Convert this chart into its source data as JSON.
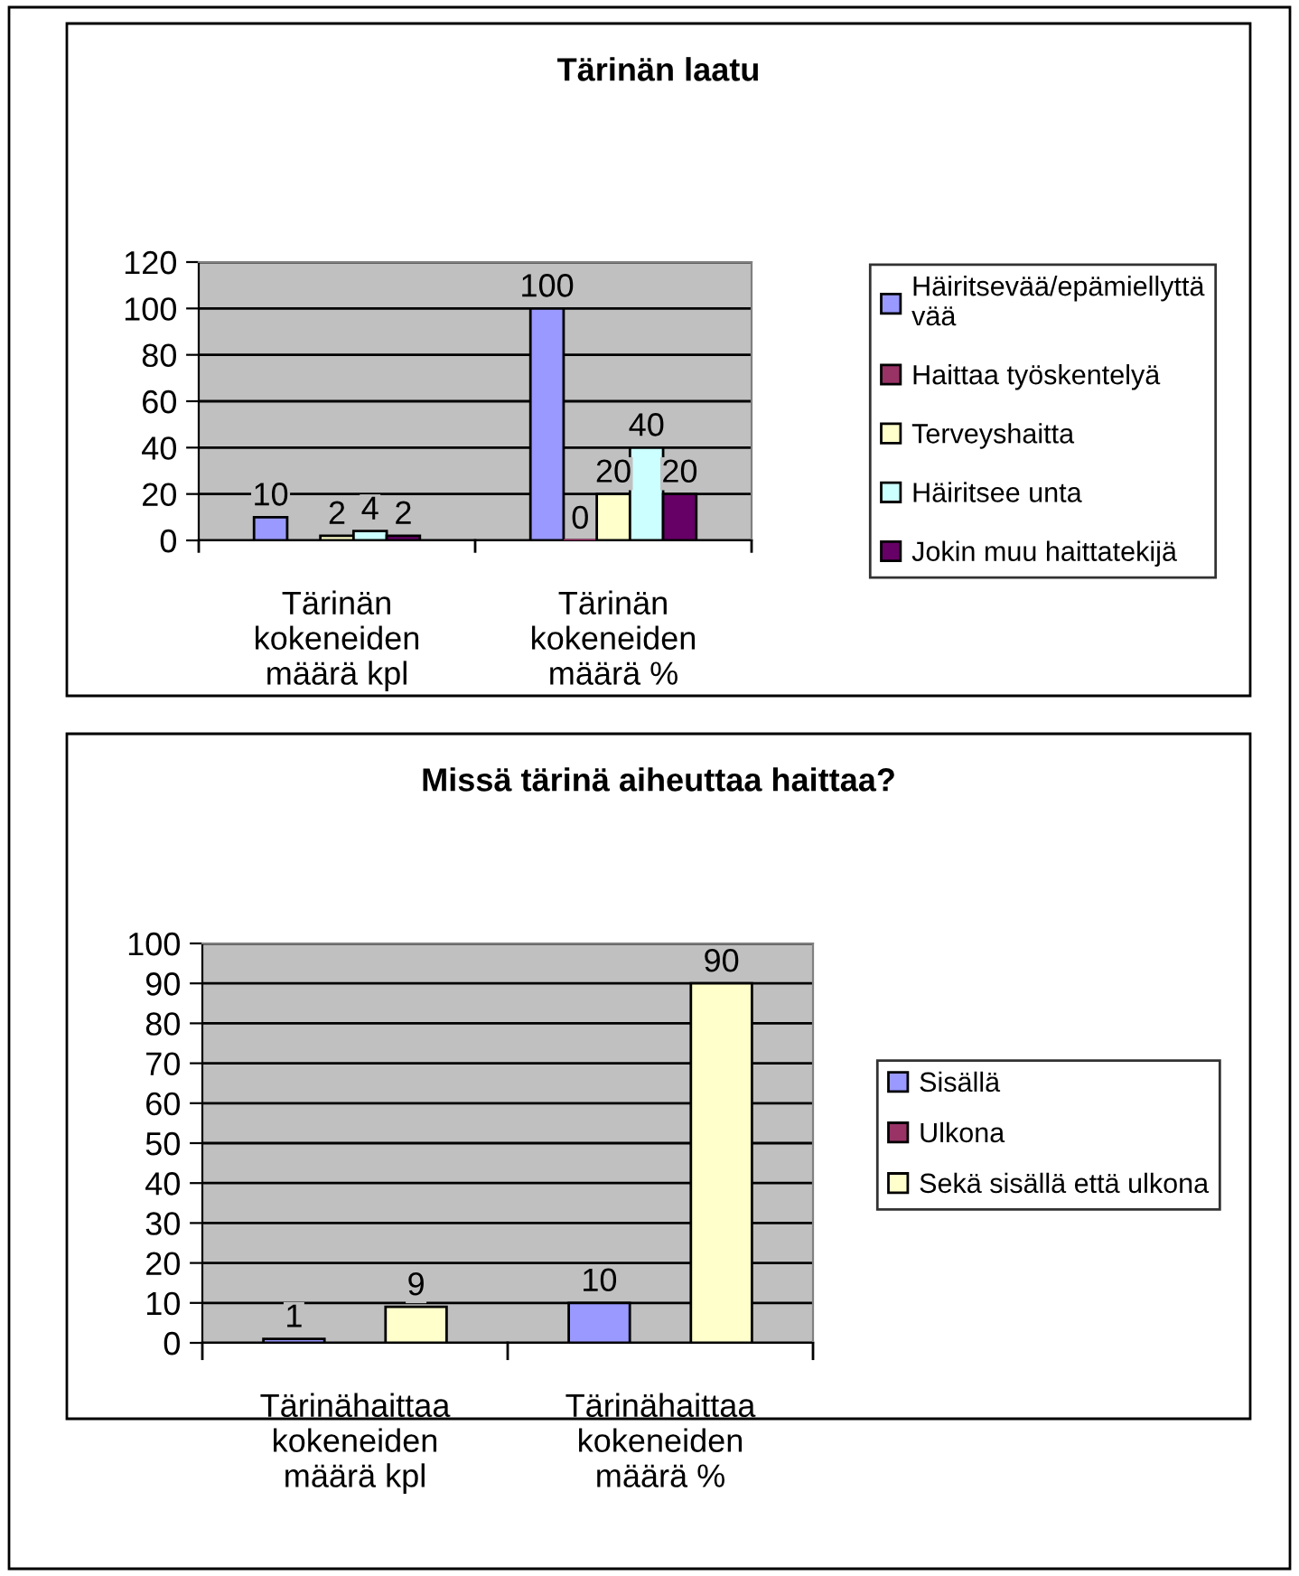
{
  "chart_data": [
    {
      "type": "bar",
      "title": "Tärinän laatu",
      "categories": [
        "Tärinän\nkokeneiden\nmäärä kpl",
        "Tärinän\nkokeneiden\nmäärä %"
      ],
      "series": [
        {
          "name": "Häiritsevää/epämiellyttä\nvää",
          "color": "#9999ff",
          "values": [
            10,
            100
          ]
        },
        {
          "name": "Haittaa työskentelyä",
          "color": "#993366",
          "values": [
            null,
            0
          ]
        },
        {
          "name": "Terveyshaitta",
          "color": "#ffffcc",
          "values": [
            2,
            20
          ]
        },
        {
          "name": "Häiritsee unta",
          "color": "#ccffff",
          "values": [
            4,
            40
          ]
        },
        {
          "name": "Jokin muu haittatekijä",
          "color": "#660066",
          "values": [
            2,
            20
          ]
        }
      ],
      "ylim": [
        0,
        120
      ],
      "yticks": [
        0,
        20,
        40,
        60,
        80,
        100,
        120
      ],
      "grid": "y",
      "legend": "right",
      "data_labels": true
    },
    {
      "type": "bar",
      "title": "Missä tärinä aiheuttaa haittaa?",
      "categories": [
        "Tärinähaittaa\nkokeneiden\nmäärä kpl",
        "Tärinähaittaa\nkokeneiden\nmäärä %"
      ],
      "series": [
        {
          "name": "Sisällä",
          "color": "#9999ff",
          "values": [
            1,
            10
          ]
        },
        {
          "name": "Ulkona",
          "color": "#993366",
          "values": [
            null,
            null
          ]
        },
        {
          "name": "Sekä sisällä että ulkona",
          "color": "#ffffcc",
          "values": [
            9,
            90
          ]
        }
      ],
      "ylim": [
        0,
        100
      ],
      "yticks": [
        0,
        10,
        20,
        30,
        40,
        50,
        60,
        70,
        80,
        90,
        100
      ],
      "grid": "y",
      "legend": "right",
      "data_labels": true
    }
  ]
}
